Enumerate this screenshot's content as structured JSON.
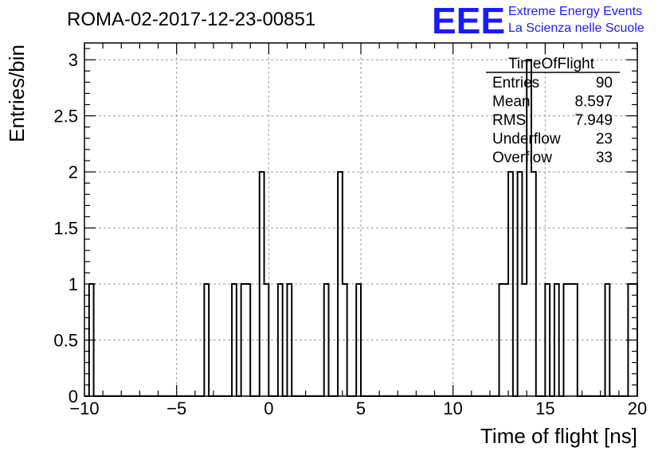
{
  "header": {
    "title": "ROMA-02-2017-12-23-00851"
  },
  "logo": {
    "mark": "EEE",
    "line1": "Extreme Energy Events",
    "line2": "La Scienza nelle Scuole",
    "color": "#1a1aff"
  },
  "stats": {
    "title": "TimeOfFlight",
    "rows": [
      {
        "label": "Entries",
        "value": "90"
      },
      {
        "label": "Mean",
        "value": "8.597"
      },
      {
        "label": "RMS",
        "value": "7.949"
      },
      {
        "label": "Underflow",
        "value": "23"
      },
      {
        "label": "Overflow",
        "value": "33"
      }
    ]
  },
  "chart_data": {
    "type": "bar",
    "histogram": true,
    "title": "ROMA-02-2017-12-23-00851",
    "xlabel": "Time of flight [ns]",
    "ylabel": "Entries/bin",
    "xlim": [
      -10,
      20
    ],
    "ylim": [
      0,
      3.15
    ],
    "bin_width": 0.25,
    "grid": true,
    "x_ticks": [
      "−10",
      "−5",
      "0",
      "5",
      "10",
      "15",
      "20"
    ],
    "x_tick_values": [
      -10,
      -5,
      0,
      5,
      10,
      15,
      20
    ],
    "y_ticks": [
      "0",
      "0.5",
      "1",
      "1.5",
      "2",
      "2.5",
      "3"
    ],
    "y_tick_values": [
      0,
      0.5,
      1,
      1.5,
      2,
      2.5,
      3
    ],
    "bins": [
      {
        "x": -9.75,
        "count": 1
      },
      {
        "x": -3.5,
        "count": 1
      },
      {
        "x": -2.0,
        "count": 1
      },
      {
        "x": -1.5,
        "count": 1
      },
      {
        "x": -1.25,
        "count": 1
      },
      {
        "x": -0.5,
        "count": 2
      },
      {
        "x": -0.25,
        "count": 1
      },
      {
        "x": 0.5,
        "count": 1
      },
      {
        "x": 1.0,
        "count": 1
      },
      {
        "x": 3.0,
        "count": 1
      },
      {
        "x": 3.75,
        "count": 2
      },
      {
        "x": 4.0,
        "count": 1
      },
      {
        "x": 4.75,
        "count": 1
      },
      {
        "x": 12.5,
        "count": 1
      },
      {
        "x": 12.75,
        "count": 1
      },
      {
        "x": 13.0,
        "count": 2
      },
      {
        "x": 13.5,
        "count": 2
      },
      {
        "x": 13.75,
        "count": 1
      },
      {
        "x": 14.0,
        "count": 3
      },
      {
        "x": 14.25,
        "count": 2
      },
      {
        "x": 15.0,
        "count": 1
      },
      {
        "x": 15.5,
        "count": 1
      },
      {
        "x": 16.0,
        "count": 1
      },
      {
        "x": 16.25,
        "count": 1
      },
      {
        "x": 16.5,
        "count": 1
      },
      {
        "x": 18.25,
        "count": 1
      },
      {
        "x": 19.5,
        "count": 1
      },
      {
        "x": 19.75,
        "count": 1
      }
    ]
  }
}
